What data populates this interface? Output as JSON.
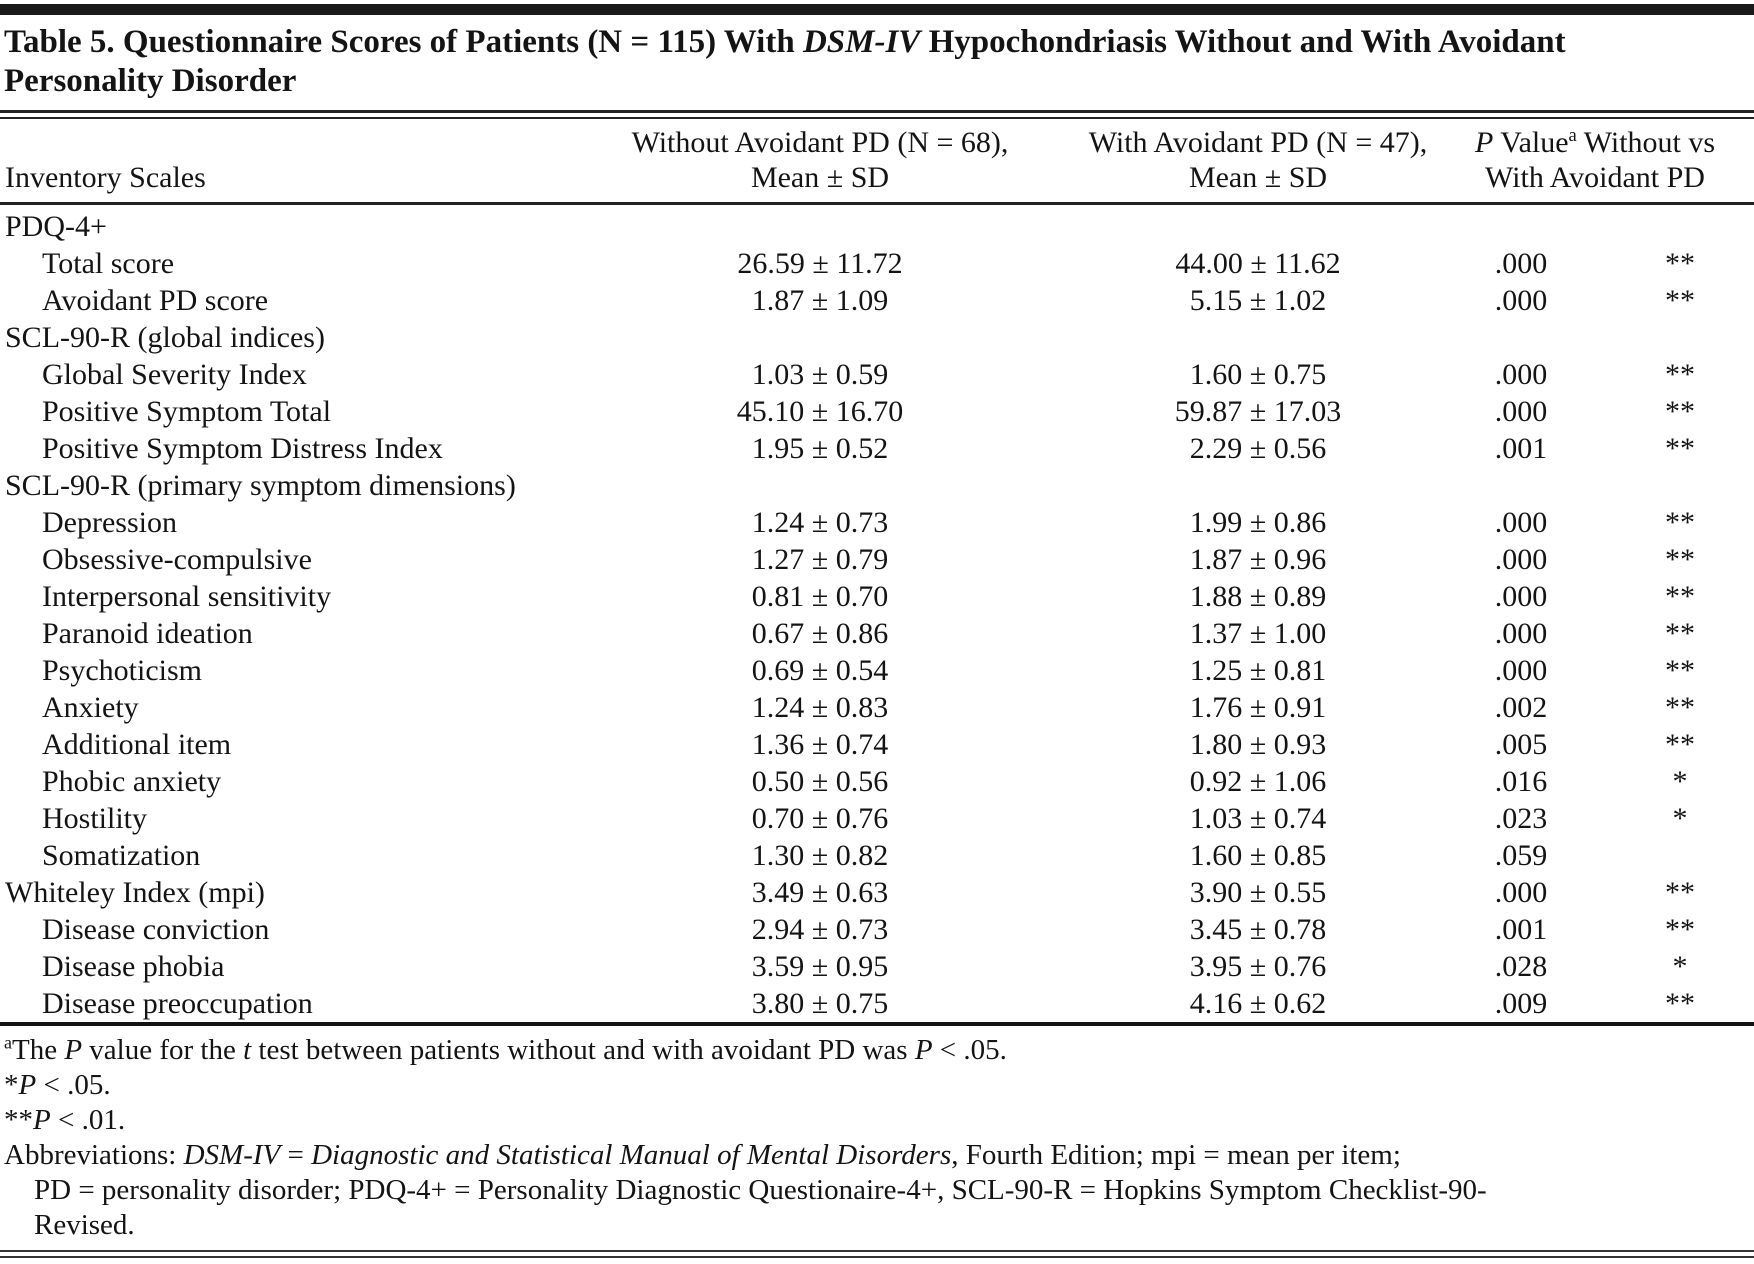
{
  "title_html": "Table 5. Questionnaire Scores of Patients (N = 115) With <i>DSM-IV</i> Hypochondriasis Without and With Avoidant<br>Personality Disorder",
  "table": {
    "headers": {
      "scales": "Inventory Scales",
      "without_html": "Without Avoidant PD (N = 68),<br>Mean ± SD",
      "with_html": "With Avoidant PD (N = 47),<br>Mean ± SD",
      "pvalue_html": "<i>P</i> Value<sup>a</sup> Without vs<br>With Avoidant PD"
    },
    "rows": [
      {
        "label": "PDQ-4+",
        "indent": false,
        "without_pd": "",
        "with_pd": "",
        "p": "",
        "sig": ""
      },
      {
        "label": "Total score",
        "indent": true,
        "without_pd": "26.59 ± 11.72",
        "with_pd": "44.00 ± 11.62",
        "p": ".000",
        "sig": "**"
      },
      {
        "label": "Avoidant PD score",
        "indent": true,
        "without_pd": "1.87 ± 1.09",
        "with_pd": "5.15 ± 1.02",
        "p": ".000",
        "sig": "**"
      },
      {
        "label": "SCL-90-R (global indices)",
        "indent": false,
        "without_pd": "",
        "with_pd": "",
        "p": "",
        "sig": ""
      },
      {
        "label": "Global Severity Index",
        "indent": true,
        "without_pd": "1.03 ± 0.59",
        "with_pd": "1.60 ± 0.75",
        "p": ".000",
        "sig": "**"
      },
      {
        "label": "Positive Symptom Total",
        "indent": true,
        "without_pd": "45.10 ± 16.70",
        "with_pd": "59.87 ± 17.03",
        "p": ".000",
        "sig": "**"
      },
      {
        "label": "Positive Symptom Distress Index",
        "indent": true,
        "without_pd": "1.95 ± 0.52",
        "with_pd": "2.29 ± 0.56",
        "p": ".001",
        "sig": "**"
      },
      {
        "label": "SCL-90-R (primary symptom dimensions)",
        "indent": false,
        "without_pd": "",
        "with_pd": "",
        "p": "",
        "sig": ""
      },
      {
        "label": "Depression",
        "indent": true,
        "without_pd": "1.24 ± 0.73",
        "with_pd": "1.99 ± 0.86",
        "p": ".000",
        "sig": "**"
      },
      {
        "label": "Obsessive-compulsive",
        "indent": true,
        "without_pd": "1.27 ± 0.79",
        "with_pd": "1.87 ± 0.96",
        "p": ".000",
        "sig": "**"
      },
      {
        "label": "Interpersonal sensitivity",
        "indent": true,
        "without_pd": "0.81 ± 0.70",
        "with_pd": "1.88 ± 0.89",
        "p": ".000",
        "sig": "**"
      },
      {
        "label": "Paranoid ideation",
        "indent": true,
        "without_pd": "0.67 ± 0.86",
        "with_pd": "1.37 ± 1.00",
        "p": ".000",
        "sig": "**"
      },
      {
        "label": "Psychoticism",
        "indent": true,
        "without_pd": "0.69 ± 0.54",
        "with_pd": "1.25 ± 0.81",
        "p": ".000",
        "sig": "**"
      },
      {
        "label": "Anxiety",
        "indent": true,
        "without_pd": "1.24 ± 0.83",
        "with_pd": "1.76 ± 0.91",
        "p": ".002",
        "sig": "**"
      },
      {
        "label": "Additional item",
        "indent": true,
        "without_pd": "1.36 ± 0.74",
        "with_pd": "1.80 ± 0.93",
        "p": ".005",
        "sig": "**"
      },
      {
        "label": "Phobic anxiety",
        "indent": true,
        "without_pd": "0.50 ± 0.56",
        "with_pd": "0.92 ± 1.06",
        "p": ".016",
        "sig": "*"
      },
      {
        "label": "Hostility",
        "indent": true,
        "without_pd": "0.70 ± 0.76",
        "with_pd": "1.03 ± 0.74",
        "p": ".023",
        "sig": "*"
      },
      {
        "label": "Somatization",
        "indent": true,
        "without_pd": "1.30 ± 0.82",
        "with_pd": "1.60 ± 0.85",
        "p": ".059",
        "sig": ""
      },
      {
        "label": "Whiteley Index (mpi)",
        "indent": false,
        "without_pd": "3.49 ± 0.63",
        "with_pd": "3.90 ± 0.55",
        "p": ".000",
        "sig": "**"
      },
      {
        "label": "Disease conviction",
        "indent": true,
        "without_pd": "2.94 ± 0.73",
        "with_pd": "3.45 ± 0.78",
        "p": ".001",
        "sig": "**"
      },
      {
        "label": "Disease phobia",
        "indent": true,
        "without_pd": "3.59 ± 0.95",
        "with_pd": "3.95 ± 0.76",
        "p": ".028",
        "sig": "*"
      },
      {
        "label": "Disease preoccupation",
        "indent": true,
        "without_pd": "3.80 ± 0.75",
        "with_pd": "4.16 ± 0.62",
        "p": ".009",
        "sig": "**"
      }
    ]
  },
  "footnotes": {
    "a_html": "<sup>a</sup>The <i>P</i> value for the <i>t</i> test between patients without and with avoidant PD was <i>P</i> &lt; .05.",
    "star_html": "*<i>P</i> &lt; .05.",
    "double_star_html": "**<i>P</i> &lt; .01.",
    "abbreviations_html": "Abbreviations: <i>DSM-IV</i> = <i>Diagnostic and Statistical Manual of Mental Disorders</i>, Fourth Edition; mpi = mean per item;<br>PD = personality disorder; PDQ-4+ = Personality Diagnostic Questionaire-4+, SCL-90-R = Hopkins Symptom Checklist-90-<br>Revised."
  },
  "colors": {
    "background": "#ffffff",
    "text": "#141414",
    "rule": "#222222"
  }
}
